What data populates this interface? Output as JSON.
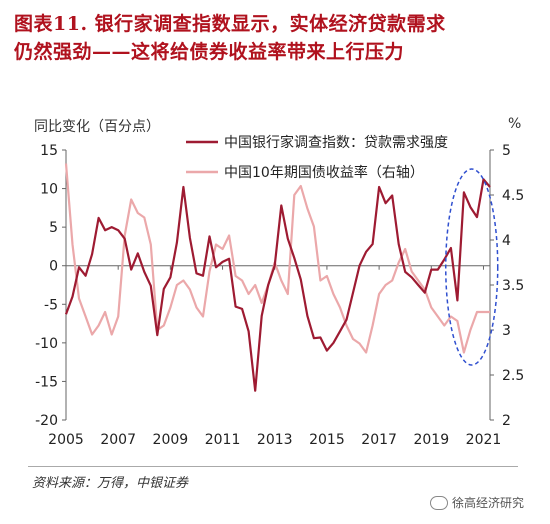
{
  "title_line1": "图表11.  银行家调查指数显示，实体经济贷款需求",
  "title_line2": "仍然强劲——这将给债券收益率带来上行压力",
  "left_unit": "同比变化（百分点）",
  "right_unit": "%",
  "source": "资料来源：万得，中银证券",
  "watermark": "徐高经济研究",
  "chart_data": {
    "type": "line",
    "left_axis": {
      "ylim": [
        -20,
        15
      ],
      "ticks": [
        "15",
        "10",
        "5",
        "0",
        "-5",
        "-10",
        "-15",
        "-20"
      ]
    },
    "right_axis": {
      "ylim": [
        2,
        5
      ],
      "ticks": [
        "5",
        "4.5",
        "4",
        "3.5",
        "3",
        "2.5",
        "2"
      ]
    },
    "xlim": [
      2005,
      2021.25
    ],
    "x_ticks": [
      "2005",
      "2007",
      "2009",
      "2011",
      "2013",
      "2015",
      "2017",
      "2019",
      "2021"
    ],
    "legend": "top-right",
    "grid": false,
    "colors": {
      "series1": "#9e1b32",
      "series2": "#eba8aa",
      "highlight": "#2f4fcf"
    },
    "series": [
      {
        "name": "中国银行家调查指数：贷款需求强度",
        "axis": "left",
        "x": [
          2005.0,
          2005.25,
          2005.5,
          2005.75,
          2006.0,
          2006.25,
          2006.5,
          2006.75,
          2007.0,
          2007.25,
          2007.5,
          2007.75,
          2008.0,
          2008.25,
          2008.5,
          2008.75,
          2009.0,
          2009.25,
          2009.5,
          2009.75,
          2010.0,
          2010.25,
          2010.5,
          2010.75,
          2011.0,
          2011.25,
          2011.5,
          2011.75,
          2012.0,
          2012.25,
          2012.5,
          2012.75,
          2013.0,
          2013.25,
          2013.5,
          2013.75,
          2014.0,
          2014.25,
          2014.5,
          2014.75,
          2015.0,
          2015.25,
          2015.5,
          2015.75,
          2016.0,
          2016.25,
          2016.5,
          2016.75,
          2017.0,
          2017.25,
          2017.5,
          2017.75,
          2018.0,
          2018.25,
          2018.5,
          2018.75,
          2019.0,
          2019.25,
          2019.5,
          2019.75,
          2020.0,
          2020.25,
          2020.5,
          2020.75,
          2021.0,
          2021.25
        ],
        "values": [
          -6.3,
          -4.0,
          -0.2,
          -1.3,
          1.5,
          6.2,
          4.6,
          5.0,
          4.6,
          3.5,
          -0.5,
          1.6,
          -0.8,
          -2.6,
          -9.0,
          -3.0,
          -1.5,
          3.0,
          10.2,
          3.6,
          -1.0,
          -1.3,
          3.8,
          -0.2,
          0.5,
          0.9,
          -5.3,
          -5.6,
          -8.5,
          -16.2,
          -6.5,
          -2.5,
          0.0,
          7.8,
          3.5,
          1.0,
          -1.8,
          -6.5,
          -9.4,
          -9.3,
          -11.0,
          -10.0,
          -8.5,
          -7.0,
          -3.5,
          0.0,
          1.8,
          2.8,
          10.2,
          8.1,
          9.1,
          2.8,
          -0.8,
          -1.5,
          -2.5,
          -3.5,
          -0.5,
          -0.5,
          0.8,
          2.3,
          -4.5,
          9.5,
          7.6,
          6.3,
          11.2,
          10.2
        ]
      },
      {
        "name": "中国10年期国债收益率（右轴）",
        "axis": "right",
        "x": [
          2005.0,
          2005.25,
          2005.5,
          2005.75,
          2006.0,
          2006.25,
          2006.5,
          2006.75,
          2007.0,
          2007.25,
          2007.5,
          2007.75,
          2008.0,
          2008.25,
          2008.5,
          2008.75,
          2009.0,
          2009.25,
          2009.5,
          2009.75,
          2010.0,
          2010.25,
          2010.5,
          2010.75,
          2011.0,
          2011.25,
          2011.5,
          2011.75,
          2012.0,
          2012.25,
          2012.5,
          2012.75,
          2013.0,
          2013.25,
          2013.5,
          2013.75,
          2014.0,
          2014.25,
          2014.5,
          2014.75,
          2015.0,
          2015.25,
          2015.5,
          2015.75,
          2016.0,
          2016.25,
          2016.5,
          2016.75,
          2017.0,
          2017.25,
          2017.5,
          2017.75,
          2018.0,
          2018.25,
          2018.5,
          2018.75,
          2019.0,
          2019.25,
          2019.5,
          2019.75,
          2020.0,
          2020.25,
          2020.5,
          2020.75,
          2021.0,
          2021.25
        ],
        "values": [
          4.85,
          3.95,
          3.35,
          3.15,
          2.95,
          3.05,
          3.2,
          2.95,
          3.15,
          4.05,
          4.45,
          4.3,
          4.25,
          3.95,
          3.0,
          3.05,
          3.25,
          3.5,
          3.55,
          3.45,
          3.25,
          3.15,
          3.65,
          3.95,
          3.9,
          4.05,
          3.6,
          3.55,
          3.4,
          3.5,
          3.3,
          3.5,
          3.75,
          3.55,
          3.4,
          4.5,
          4.6,
          4.35,
          4.15,
          3.55,
          3.6,
          3.4,
          3.25,
          3.05,
          2.9,
          2.85,
          2.75,
          3.05,
          3.4,
          3.5,
          3.55,
          3.75,
          3.9,
          3.65,
          3.55,
          3.45,
          3.25,
          3.15,
          3.05,
          3.15,
          3.1,
          2.75,
          3.0,
          3.2,
          3.2,
          3.2
        ]
      }
    ]
  }
}
